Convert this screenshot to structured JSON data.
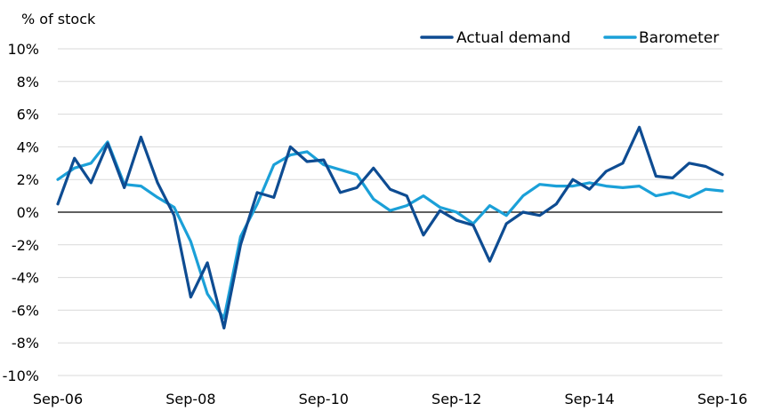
{
  "chart_data": {
    "type": "line",
    "title": "",
    "ylabel": "% of stock",
    "xlabel": "",
    "ylim": [
      -10,
      10
    ],
    "y_ticks": [
      10,
      8,
      6,
      4,
      2,
      0,
      -2,
      -4,
      -6,
      -8,
      -10
    ],
    "y_tick_labels": [
      "10%",
      "8%",
      "6%",
      "4%",
      "2%",
      "0%",
      "-2%",
      "-4%",
      "-6%",
      "-8%",
      "-10%"
    ],
    "x_tick_labels": [
      "Sep-06",
      "Sep-08",
      "Sep-10",
      "Sep-12",
      "Sep-14",
      "Sep-16"
    ],
    "x_frequency": "quarterly",
    "x_start": "Sep-06",
    "x_end": "Sep-16",
    "grid": true,
    "legend_position": "top-right",
    "series": [
      {
        "name": "Actual demand",
        "color": "#0e4c92",
        "values": [
          0.5,
          3.3,
          1.8,
          4.2,
          1.5,
          4.6,
          1.8,
          -0.2,
          -5.2,
          -3.1,
          -7.1,
          -2.0,
          1.2,
          0.9,
          4.0,
          3.1,
          3.2,
          1.2,
          1.5,
          2.7,
          1.4,
          1.0,
          -1.4,
          0.1,
          -0.5,
          -0.8,
          -3.0,
          -0.7,
          0.0,
          -0.2,
          0.5,
          2.0,
          1.4,
          2.5,
          3.0,
          5.2,
          2.2,
          2.1,
          3.0,
          2.8,
          2.3
        ]
      },
      {
        "name": "Barometer",
        "color": "#1ba0d8",
        "values": [
          2.0,
          2.7,
          3.0,
          4.3,
          1.7,
          1.6,
          0.9,
          0.3,
          -1.8,
          -5.0,
          -6.5,
          -1.5,
          0.5,
          2.9,
          3.5,
          3.7,
          2.9,
          2.6,
          2.3,
          0.8,
          0.1,
          0.4,
          1.0,
          0.3,
          0.0,
          -0.7,
          0.4,
          -0.2,
          1.0,
          1.7,
          1.6,
          1.6,
          1.8,
          1.6,
          1.5,
          1.6,
          1.0,
          1.2,
          0.9,
          1.4,
          1.3
        ]
      }
    ]
  }
}
